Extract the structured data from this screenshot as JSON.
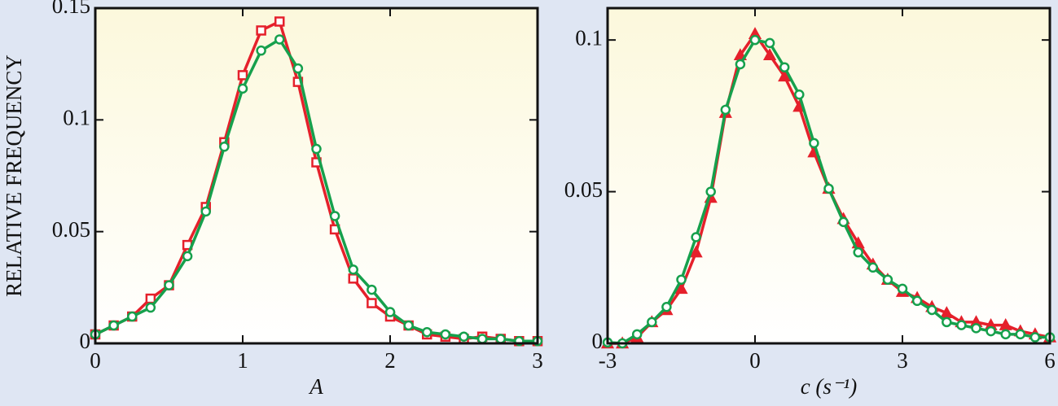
{
  "chart_data": [
    {
      "type": "line",
      "ylabel": "RELATIVE FREQUENCY",
      "xlabel": "A",
      "x": [
        0,
        0.125,
        0.25,
        0.375,
        0.5,
        0.625,
        0.75,
        0.875,
        1,
        1.125,
        1.25,
        1.375,
        1.5,
        1.625,
        1.75,
        1.875,
        2,
        2.125,
        2.25,
        2.375,
        2.5,
        2.625,
        2.75,
        2.875,
        3
      ],
      "series": [
        {
          "color": "#e5202b",
          "marker": "square",
          "values": [
            0.004,
            0.008,
            0.012,
            0.02,
            0.026,
            0.044,
            0.061,
            0.09,
            0.12,
            0.14,
            0.144,
            0.117,
            0.081,
            0.051,
            0.029,
            0.018,
            0.012,
            0.008,
            0.004,
            0.003,
            0.002,
            0.003,
            0.002,
            0.001,
            0.001
          ]
        },
        {
          "color": "#16a04c",
          "marker": "circle",
          "values": [
            0.004,
            0.008,
            0.012,
            0.016,
            0.026,
            0.039,
            0.059,
            0.088,
            0.114,
            0.131,
            0.136,
            0.123,
            0.087,
            0.057,
            0.033,
            0.024,
            0.014,
            0.008,
            0.005,
            0.004,
            0.003,
            0.002,
            0.002,
            0.001,
            0.001
          ]
        }
      ],
      "xlim": [
        0,
        3
      ],
      "xticks": [
        0,
        1,
        2,
        3
      ],
      "ylim": [
        0,
        0.15
      ],
      "yticks": [
        0,
        0.05,
        0.1,
        0.15
      ]
    },
    {
      "type": "line",
      "xlabel": "c (s⁻¹)",
      "x": [
        -3,
        -2.7,
        -2.4,
        -2.1,
        -1.8,
        -1.5,
        -1.2,
        -0.9,
        -0.6,
        -0.3,
        0,
        0.3,
        0.6,
        0.9,
        1.2,
        1.5,
        1.8,
        2.1,
        2.4,
        2.7,
        3,
        3.3,
        3.6,
        3.9,
        4.2,
        4.5,
        4.8,
        5.1,
        5.4,
        5.7,
        6
      ],
      "series": [
        {
          "color": "#e5202b",
          "marker": "triangle",
          "values": [
            0,
            0,
            0.002,
            0.007,
            0.011,
            0.018,
            0.03,
            0.048,
            0.076,
            0.095,
            0.102,
            0.095,
            0.088,
            0.078,
            0.063,
            0.051,
            0.041,
            0.033,
            0.026,
            0.021,
            0.017,
            0.015,
            0.012,
            0.01,
            0.007,
            0.007,
            0.006,
            0.006,
            0.004,
            0.003,
            0.002
          ]
        },
        {
          "color": "#16a04c",
          "marker": "circle",
          "values": [
            0.0003,
            0,
            0.003,
            0.007,
            0.012,
            0.021,
            0.035,
            0.05,
            0.077,
            0.092,
            0.1,
            0.099,
            0.091,
            0.082,
            0.066,
            0.051,
            0.04,
            0.03,
            0.025,
            0.021,
            0.018,
            0.014,
            0.011,
            0.007,
            0.006,
            0.005,
            0.004,
            0.003,
            0.003,
            0.002,
            0.002
          ]
        }
      ],
      "xlim": [
        -3,
        6
      ],
      "xticks": [
        -3,
        0,
        3,
        6
      ],
      "ylim": [
        0,
        0.1105
      ],
      "yticks": [
        0,
        0.05,
        0.1
      ]
    }
  ]
}
